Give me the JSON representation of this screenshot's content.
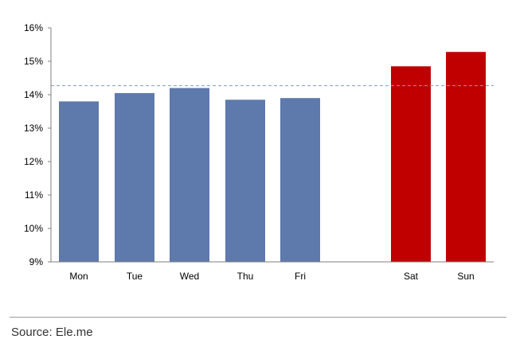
{
  "chart_data": {
    "type": "bar",
    "categories": [
      "Mon",
      "Tue",
      "Wed",
      "Thu",
      "Fri",
      "Sat",
      "Sun"
    ],
    "values": [
      13.8,
      14.05,
      14.2,
      13.85,
      13.9,
      14.85,
      15.28
    ],
    "ylim": [
      9,
      16
    ],
    "yticks": [
      "9%",
      "10%",
      "11%",
      "12%",
      "13%",
      "14%",
      "15%",
      "16%"
    ],
    "ytick_values": [
      9,
      10,
      11,
      12,
      13,
      14,
      15,
      16
    ],
    "reference_line": 14.27,
    "colors": {
      "weekday": "#5e79ab",
      "weekend": "#c00000",
      "reference_line": "#7f9cc9",
      "axis": "#7f7f7f"
    },
    "bar_colors": [
      "weekday",
      "weekday",
      "weekday",
      "weekday",
      "weekday",
      "weekend",
      "weekend"
    ],
    "title": "",
    "xlabel": "",
    "ylabel": "",
    "grid": false,
    "legend": "none"
  },
  "footer": {
    "source": "Source: Ele.me"
  }
}
